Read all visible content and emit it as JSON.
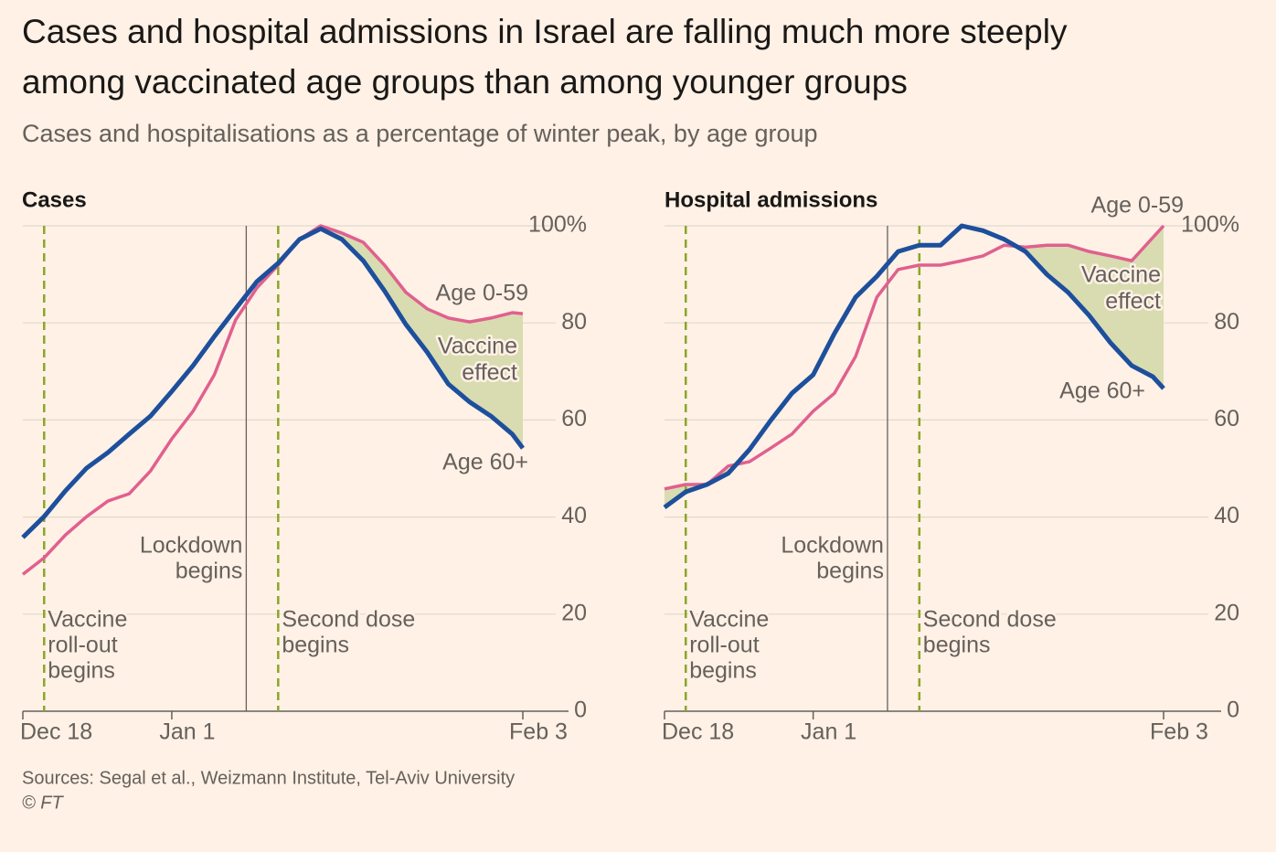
{
  "title": [
    "Cases and hospital admissions in Israel are falling much more steeply",
    "among vaccinated age groups than among younger groups"
  ],
  "subtitle": "Cases and hospitalisations as a percentage of winter peak, by age group",
  "source": "Sources: Segal et al., Weizmann Institute, Tel-Aviv University",
  "credit": "© FT",
  "chart_data": [
    {
      "type": "line",
      "title": "Cases",
      "x": [
        0,
        2,
        4,
        6,
        8,
        10,
        12,
        14,
        16,
        18,
        20,
        22,
        24,
        26,
        28,
        30,
        32,
        34,
        36,
        38,
        40,
        42,
        44,
        46,
        47
      ],
      "series": [
        {
          "name": "Age 0-59",
          "color": "#e0608f",
          "values": [
            28.2,
            31.6,
            36.3,
            40.1,
            43.3,
            44.8,
            49.5,
            56.1,
            61.8,
            69.3,
            80.6,
            87.2,
            91.9,
            97.2,
            100,
            98.5,
            96.6,
            91.9,
            86.3,
            82.9,
            81.0,
            80.2,
            81.0,
            82.1,
            81.9
          ]
        },
        {
          "name": "Age 60+",
          "color": "#1d4f9c",
          "values": [
            35.8,
            40.1,
            45.4,
            50.1,
            53.3,
            57.1,
            60.8,
            65.9,
            71.2,
            77.2,
            82.9,
            88.5,
            92.3,
            97.2,
            99.4,
            97.2,
            92.8,
            86.6,
            79.7,
            74.0,
            67.4,
            63.7,
            60.8,
            57.1,
            54.2
          ]
        }
      ],
      "annotation": [
        "Vaccine",
        "effect"
      ],
      "events": [
        {
          "label": [
            "Vaccine",
            "roll-out",
            "begins"
          ],
          "x": 2,
          "color": "#8aa62a",
          "style": "dashed"
        },
        {
          "label": [
            "Lockdown",
            "begins"
          ],
          "x": 21,
          "color": "#66605c",
          "style": "solid"
        },
        {
          "label": [
            "Second dose",
            "begins"
          ],
          "x": 24,
          "color": "#8aa62a",
          "style": "dashed"
        }
      ],
      "xlim": [
        0,
        47
      ],
      "xticks": [
        {
          "value": 0,
          "label": "Dec 18"
        },
        {
          "value": 14,
          "label": "Jan 1"
        },
        {
          "value": 47,
          "label": "Feb 3"
        }
      ],
      "ylim": [
        0,
        100
      ],
      "yticks": [
        0,
        20,
        40,
        60,
        80,
        {
          "value": 100,
          "label": "100%"
        }
      ],
      "grid": true
    },
    {
      "type": "line",
      "title": "Hospital admissions",
      "x": [
        0,
        2,
        4,
        6,
        8,
        10,
        12,
        14,
        16,
        18,
        20,
        22,
        24,
        26,
        28,
        30,
        32,
        34,
        36,
        38,
        40,
        42,
        44,
        46,
        47
      ],
      "series": [
        {
          "name": "Age 0-59",
          "color": "#e0608f",
          "values": [
            45.8,
            46.7,
            46.7,
            50.5,
            51.4,
            54.2,
            57.1,
            61.8,
            65.5,
            73.1,
            85.3,
            91.0,
            91.9,
            91.9,
            92.8,
            93.8,
            96.0,
            95.6,
            96.0,
            96.0,
            94.7,
            93.8,
            92.8,
            97.6,
            100
          ]
        },
        {
          "name": "Age 60+",
          "color": "#1d4f9c",
          "values": [
            42.0,
            45.2,
            46.7,
            49.0,
            53.9,
            59.9,
            65.5,
            69.3,
            77.8,
            85.3,
            89.6,
            94.7,
            96.0,
            96.0,
            100,
            99.0,
            97.2,
            94.7,
            90.0,
            86.3,
            81.5,
            75.9,
            71.2,
            68.9,
            66.5
          ]
        }
      ],
      "annotation": [
        "Vaccine",
        "effect"
      ],
      "events": [
        {
          "label": [
            "Vaccine",
            "roll-out",
            "begins"
          ],
          "x": 2,
          "color": "#8aa62a",
          "style": "dashed"
        },
        {
          "label": [
            "Lockdown",
            "begins"
          ],
          "x": 21,
          "color": "#66605c",
          "style": "solid"
        },
        {
          "label": [
            "Second dose",
            "begins"
          ],
          "x": 24,
          "color": "#8aa62a",
          "style": "dashed"
        }
      ],
      "xlim": [
        0,
        47
      ],
      "xticks": [
        {
          "value": 0,
          "label": "Dec 18"
        },
        {
          "value": 14,
          "label": "Jan 1"
        },
        {
          "value": 47,
          "label": "Feb 3"
        }
      ],
      "ylim": [
        0,
        100
      ],
      "yticks": [
        0,
        20,
        40,
        60,
        80,
        {
          "value": 100,
          "label": "100%"
        }
      ],
      "grid": true
    }
  ]
}
